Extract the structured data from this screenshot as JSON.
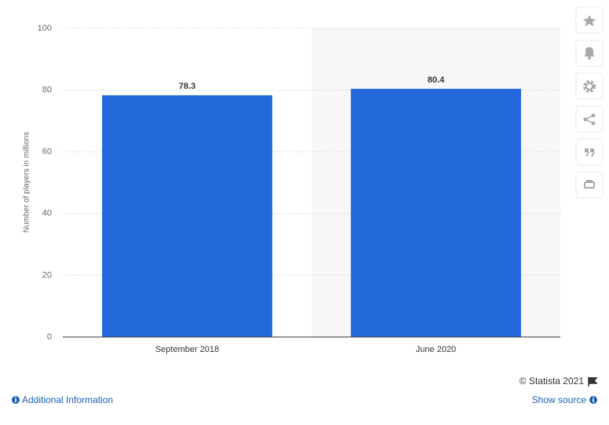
{
  "chart_data": {
    "type": "bar",
    "y_label": "Number of players in millions",
    "categories": [
      "September 2018",
      "June 2020"
    ],
    "values": [
      78.3,
      80.4
    ],
    "color": "#2369db",
    "ylim": [
      0,
      100
    ],
    "yticks": [
      0,
      20,
      40,
      60,
      80,
      100
    ],
    "grid": true
  },
  "footer": {
    "copyright": "© Statista 2021",
    "additional_information": "Additional Information",
    "show_source": "Show source"
  }
}
